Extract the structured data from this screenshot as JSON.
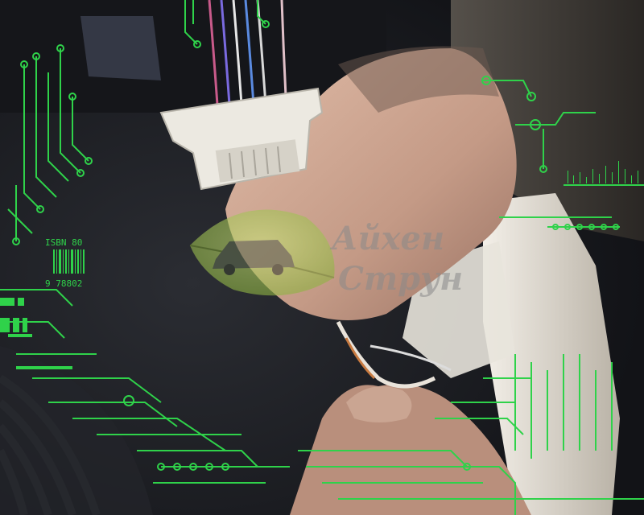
{
  "watermark": {
    "line1": "Айхен",
    "line2": "Струн",
    "leaf_color": "#a7c958",
    "text_color": "#8a8a8a"
  },
  "circuit_overlay": {
    "color": "#2fd24a",
    "isbn_label": "ISBN 80",
    "barcode_digits": "9 78802"
  },
  "scene_colors": {
    "carpet": "#1c1d22",
    "skin": "#c7a08c",
    "connector": "#e6e4dc",
    "panel": "#d9d2c6",
    "jacket": "#3a3632"
  }
}
